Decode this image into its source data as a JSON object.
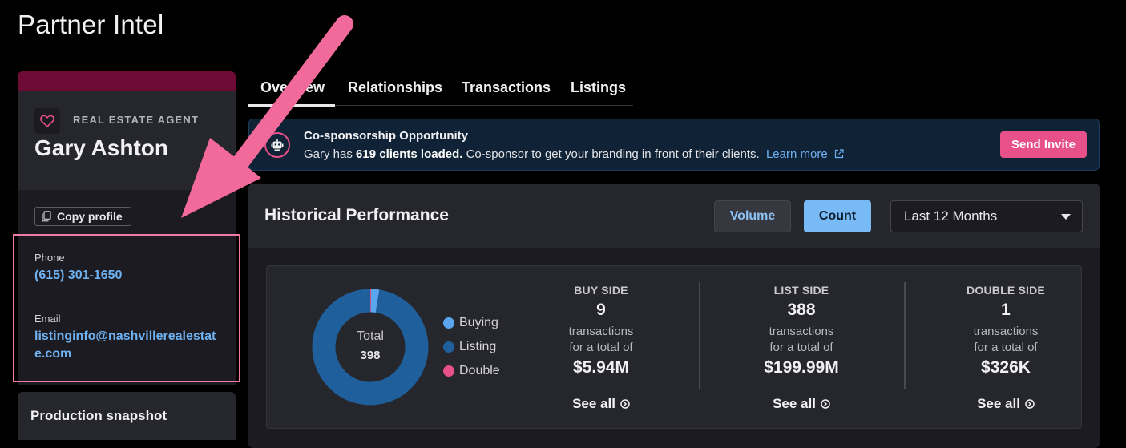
{
  "page": {
    "title": "Partner Intel"
  },
  "profile": {
    "role": "REAL ESTATE AGENT",
    "name": "Gary Ashton",
    "favorite_icon": "heart-icon",
    "copy_label": "Copy profile",
    "copy_icon": "copy-icon",
    "phone_label": "Phone",
    "phone": "(615) 301-1650",
    "email_label": "Email",
    "email_line1": "listinginfo@nashvillerealestat",
    "email_line2": "e.com"
  },
  "snapshot": {
    "title": "Production snapshot"
  },
  "tabs": [
    {
      "label": "Overview",
      "active": true
    },
    {
      "label": "Relationships"
    },
    {
      "label": "Transactions"
    },
    {
      "label": "Listings"
    }
  ],
  "cosponsor": {
    "icon": "robot-icon",
    "title": "Co-sponsorship Opportunity",
    "text_before": "Gary has ",
    "text_bold": "619 clients loaded.",
    "text_after": " Co-sponsor to get your branding in front of their clients.",
    "learn_more": "Learn more",
    "external_icon": "external-link-icon",
    "button": "Send Invite"
  },
  "performance": {
    "title": "Historical Performance",
    "volume_label": "Volume",
    "count_label": "Count",
    "period": "Last 12 Months",
    "donut": {
      "center_label": "Total",
      "center_value": "398",
      "segments": [
        {
          "name": "Buying",
          "value": 9,
          "color": "#5aa6ee"
        },
        {
          "name": "Listing",
          "value": 388,
          "color": "#1f5f9c"
        },
        {
          "name": "Double",
          "value": 1,
          "color": "#e8508a"
        }
      ]
    },
    "stats": [
      {
        "heading": "BUY SIDE",
        "count": "9",
        "sub1": "transactions",
        "sub2": "for a total of",
        "amount": "$5.94M",
        "see_all": "See all"
      },
      {
        "heading": "LIST SIDE",
        "count": "388",
        "sub1": "transactions",
        "sub2": "for a total of",
        "amount": "$199.99M",
        "see_all": "See all"
      },
      {
        "heading": "DOUBLE SIDE",
        "count": "1",
        "sub1": "transactions",
        "sub2": "for a total of",
        "amount": "$326K",
        "see_all": "See all"
      }
    ]
  },
  "annotation": {
    "arrow_color": "#f26a9a",
    "box_color": "#f07aa3"
  }
}
